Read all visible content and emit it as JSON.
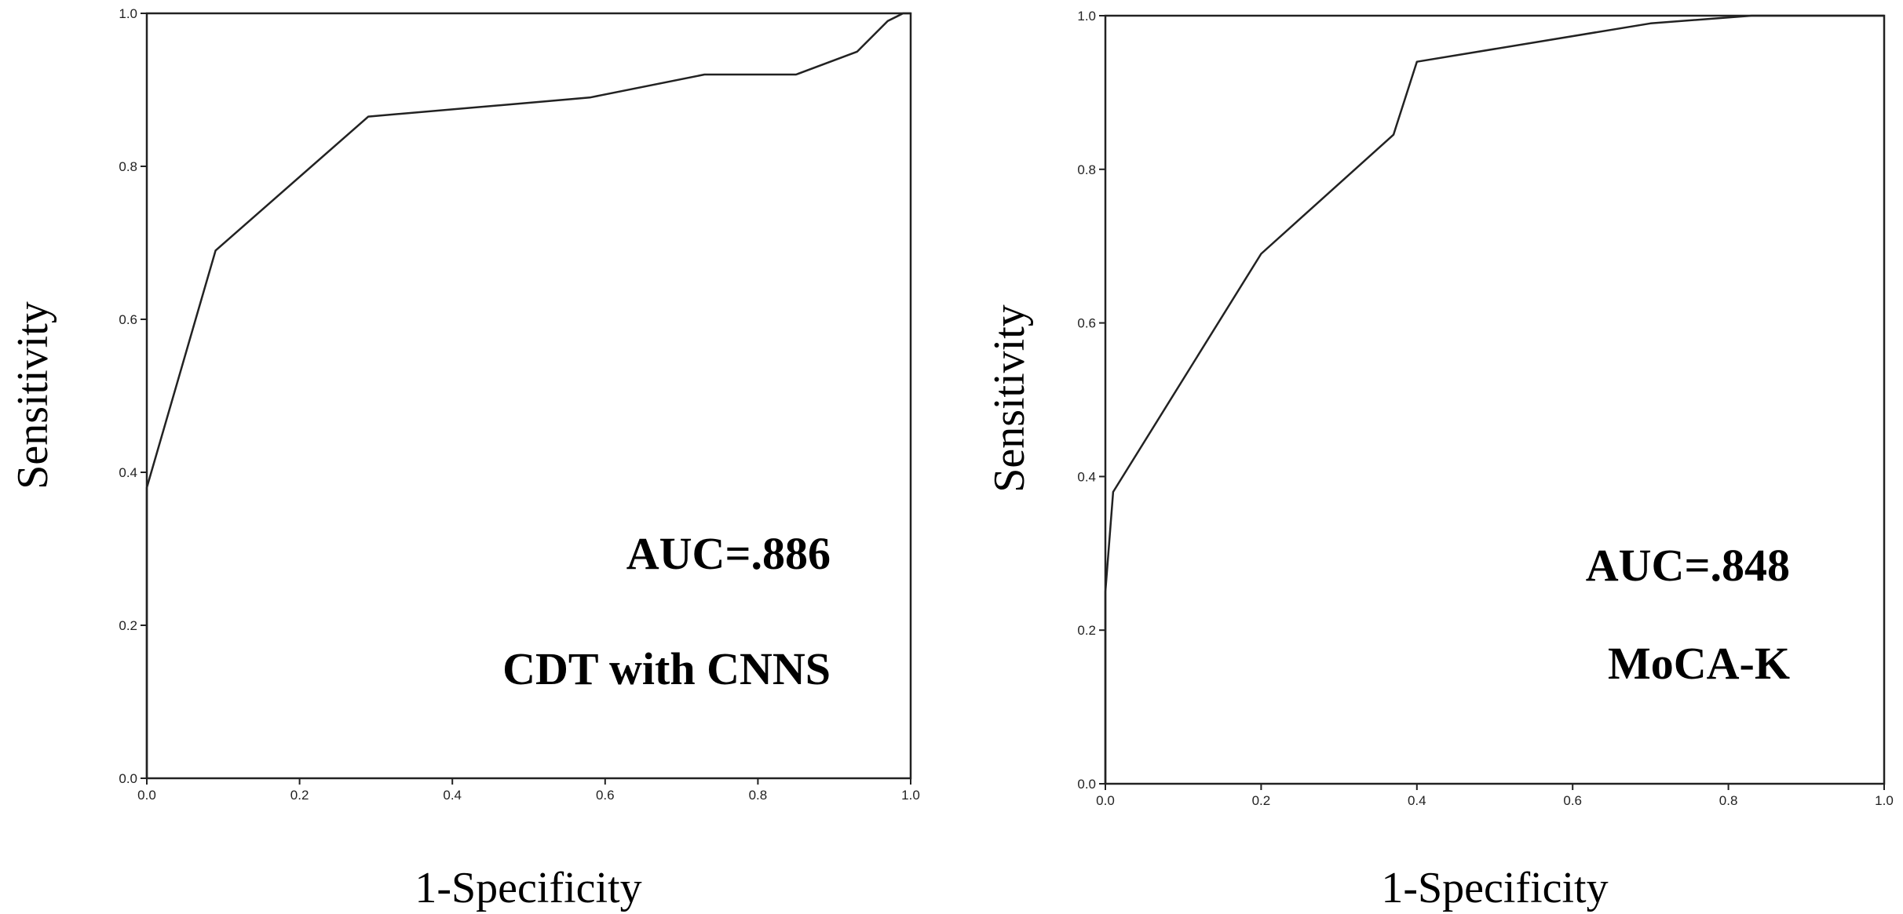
{
  "chart_data": [
    {
      "type": "line",
      "xlabel": "1-Specificity",
      "ylabel": "Sensitivity",
      "xlim": [
        0,
        1
      ],
      "ylim": [
        0,
        1
      ],
      "x_ticks": [
        "0.0",
        "0.2",
        "0.4",
        "0.6",
        "0.8",
        "1.0"
      ],
      "y_ticks": [
        "0.0",
        "0.2",
        "0.4",
        "0.6",
        "0.8",
        "1.0"
      ],
      "grid": false,
      "annotations": [
        "AUC=.886",
        "CDT with CNNS"
      ],
      "series": [
        {
          "x": [
            0,
            0,
            0.09,
            0.29,
            0.58,
            0.73,
            0.85,
            0.93,
            0.97,
            0.99,
            1.0
          ],
          "y": [
            0,
            0.38,
            0.69,
            0.865,
            0.89,
            0.92,
            0.92,
            0.95,
            0.99,
            1.0,
            1.0
          ]
        }
      ]
    },
    {
      "type": "line",
      "xlabel": "1-Specificity",
      "ylabel": "Sensitivity",
      "xlim": [
        0,
        1
      ],
      "ylim": [
        0,
        1
      ],
      "x_ticks": [
        "0.0",
        "0.2",
        "0.4",
        "0.6",
        "0.8",
        "1.0"
      ],
      "y_ticks": [
        "0.0",
        "0.2",
        "0.4",
        "0.6",
        "0.8",
        "1.0"
      ],
      "grid": false,
      "annotations": [
        "AUC=.848",
        "MoCA-K"
      ],
      "series": [
        {
          "x": [
            0,
            0,
            0.01,
            0.2,
            0.37,
            0.4,
            0.7,
            0.83,
            1.0
          ],
          "y": [
            0,
            0.25,
            0.38,
            0.69,
            0.845,
            0.94,
            0.99,
            1.0,
            1.0
          ]
        }
      ]
    }
  ]
}
